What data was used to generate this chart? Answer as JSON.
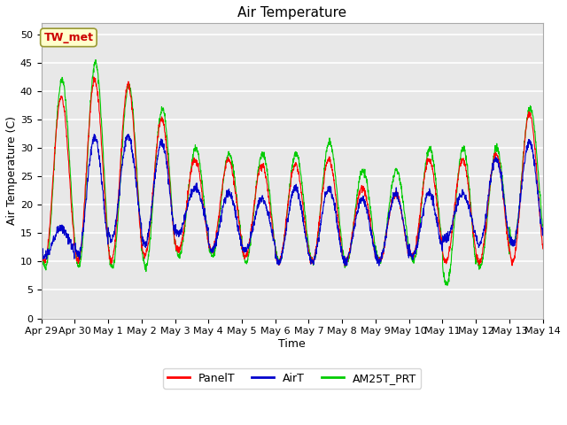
{
  "title": "Air Temperature",
  "xlabel": "Time",
  "ylabel": "Air Temperature (C)",
  "ylim": [
    0,
    52
  ],
  "yticks": [
    0,
    5,
    10,
    15,
    20,
    25,
    30,
    35,
    40,
    45,
    50
  ],
  "x_labels": [
    "Apr 29",
    "Apr 30",
    "May 1",
    "May 2",
    "May 3",
    "May 4",
    "May 5",
    "May 6",
    "May 7",
    "May 8",
    "May 9",
    "May 10",
    "May 11",
    "May 12",
    "May 13",
    "May 14"
  ],
  "legend_labels": [
    "PanelT",
    "AirT",
    "AM25T_PRT"
  ],
  "legend_colors": [
    "#ff0000",
    "#0000cc",
    "#00cc00"
  ],
  "panel_peaks": [
    39,
    42,
    41,
    35,
    28,
    28,
    27,
    27,
    28,
    23,
    22,
    28,
    28,
    29,
    36
  ],
  "panel_troughs": [
    10,
    10,
    10,
    11,
    12,
    12,
    11,
    10,
    10,
    10,
    10,
    11,
    10,
    10,
    10
  ],
  "air_peaks": [
    16,
    32,
    32,
    31,
    23,
    22,
    21,
    23,
    23,
    21,
    22,
    22,
    22,
    28,
    31
  ],
  "air_troughs": [
    11,
    11,
    14,
    13,
    15,
    12,
    12,
    10,
    10,
    10,
    10,
    11,
    14,
    13,
    13
  ],
  "am25_peaks": [
    42,
    45,
    41,
    37,
    30,
    29,
    29,
    29,
    31,
    26,
    26,
    30,
    30,
    30,
    37
  ],
  "am25_troughs": [
    9,
    9,
    9,
    9,
    11,
    11,
    10,
    10,
    10,
    10,
    10,
    10,
    6,
    9,
    13
  ],
  "annotation_text": "TW_met",
  "annotation_color": "#cc0000",
  "annotation_bg": "#ffffcc",
  "annotation_border": "#999933",
  "bg_color": "#e8e8e8",
  "grid_color": "#ffffff",
  "title_fontsize": 11,
  "axis_label_fontsize": 9,
  "tick_fontsize": 8,
  "legend_fontsize": 9
}
